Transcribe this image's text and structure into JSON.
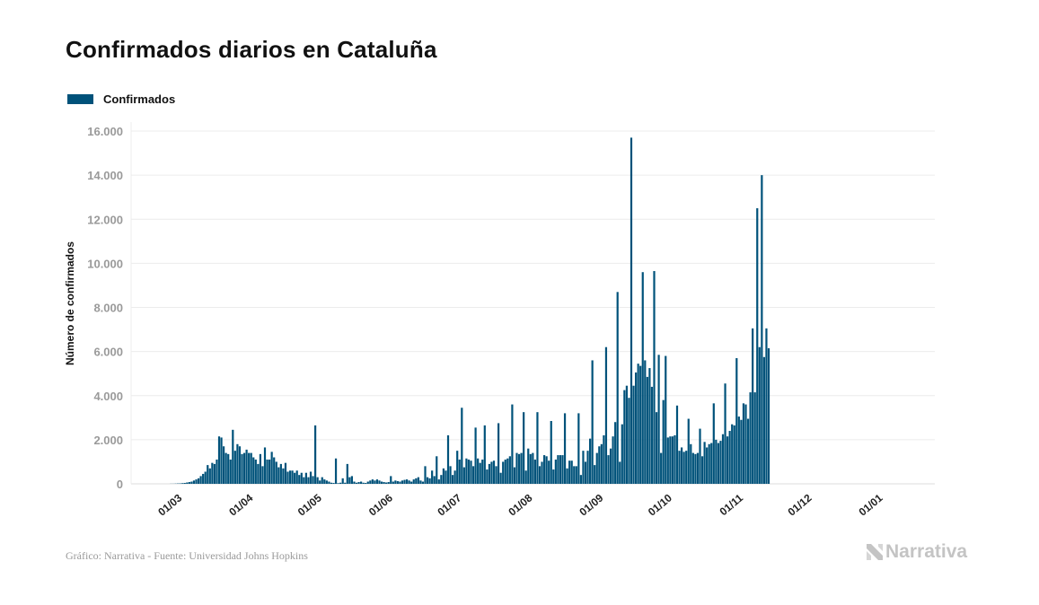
{
  "title": "Confirmados diarios en Cataluña",
  "legend": {
    "label": "Confirmados",
    "color": "#00527a"
  },
  "footer": {
    "source": "Gráfico: Narrativa - Fuente: Universidad Johns Hopkins",
    "brand": "Narrativa",
    "brand_icon": "narrativa-logo-icon"
  },
  "chart_data": {
    "type": "bar",
    "title": "Confirmados diarios en Cataluña",
    "xlabel": "",
    "ylabel": "Número de confirmados",
    "ylim": [
      0,
      16000
    ],
    "yticks": [
      0,
      2000,
      4000,
      6000,
      8000,
      10000,
      12000,
      14000,
      16000
    ],
    "ytick_labels": [
      "0",
      "2.000",
      "4.000",
      "6.000",
      "8.000",
      "10.000",
      "12.000",
      "14.000",
      "16.000"
    ],
    "xticks": [
      "01/03",
      "01/04",
      "01/05",
      "01/06",
      "01/07",
      "01/08",
      "01/09",
      "01/10",
      "01/11",
      "01/12",
      "01/01"
    ],
    "xtick_day_index": [
      17,
      48,
      78,
      109,
      139,
      170,
      201,
      231,
      262,
      292,
      323
    ],
    "grid": true,
    "legend_position": "top-left",
    "color": "#00527a",
    "start_date": "2020-02-13",
    "series": [
      {
        "name": "Confirmados",
        "values": [
          0,
          0,
          0,
          0,
          0,
          0,
          0,
          0,
          0,
          0,
          0,
          0,
          0,
          0,
          0,
          0,
          0,
          5,
          5,
          10,
          15,
          20,
          30,
          40,
          60,
          80,
          100,
          150,
          200,
          250,
          350,
          450,
          550,
          850,
          700,
          950,
          900,
          1100,
          2150,
          2100,
          1700,
          1400,
          1350,
          1100,
          2450,
          1500,
          1800,
          1700,
          1350,
          1400,
          1550,
          1400,
          1400,
          1200,
          1100,
          900,
          1350,
          800,
          1650,
          1100,
          1100,
          1450,
          1200,
          1000,
          750,
          900,
          700,
          950,
          550,
          600,
          600,
          500,
          600,
          400,
          500,
          300,
          500,
          300,
          550,
          350,
          2650,
          300,
          150,
          300,
          200,
          150,
          100,
          50,
          40,
          1150,
          30,
          50,
          250,
          50,
          900,
          300,
          350,
          100,
          50,
          80,
          100,
          50,
          40,
          100,
          150,
          200,
          150,
          200,
          150,
          100,
          80,
          60,
          80,
          350,
          100,
          150,
          120,
          100,
          150,
          180,
          200,
          150,
          100,
          200,
          250,
          300,
          150,
          100,
          800,
          300,
          250,
          600,
          350,
          1250,
          200,
          400,
          700,
          600,
          2200,
          800,
          400,
          600,
          1500,
          1100,
          3450,
          750,
          1150,
          1100,
          1050,
          800,
          2550,
          1150,
          950,
          1100,
          2650,
          650,
          900,
          1000,
          1050,
          800,
          2750,
          500,
          1000,
          1100,
          1150,
          1250,
          3600,
          750,
          1400,
          1350,
          1400,
          3250,
          600,
          1600,
          1350,
          1400,
          1100,
          3250,
          800,
          1000,
          1300,
          1250,
          1050,
          2850,
          650,
          1100,
          1300,
          1300,
          1300,
          3200,
          700,
          1050,
          1050,
          800,
          800,
          3200,
          400,
          1500,
          1000,
          1500,
          2050,
          5600,
          850,
          1400,
          1700,
          1800,
          2200,
          6200,
          1300,
          1600,
          2150,
          2800,
          8700,
          1000,
          2700,
          4250,
          4450,
          3900,
          15700,
          4450,
          5050,
          5450,
          5350,
          9600,
          5600,
          4850,
          5250,
          4400,
          9650,
          3250,
          5850,
          1400,
          3800,
          5800,
          2100,
          2150,
          2150,
          2200,
          3550,
          1500,
          1650,
          1450,
          1500,
          2950,
          1800,
          1400,
          1350,
          1400,
          2500,
          1250,
          1900,
          1650,
          1800,
          1850,
          3650,
          2000,
          1850,
          1950,
          2250,
          4550,
          2150,
          2400,
          2700,
          2650,
          5700,
          3050,
          2900,
          3650,
          3600,
          2950,
          4150,
          7050,
          4150,
          12500,
          6200,
          14000,
          5750,
          7050,
          6150
        ]
      }
    ]
  }
}
